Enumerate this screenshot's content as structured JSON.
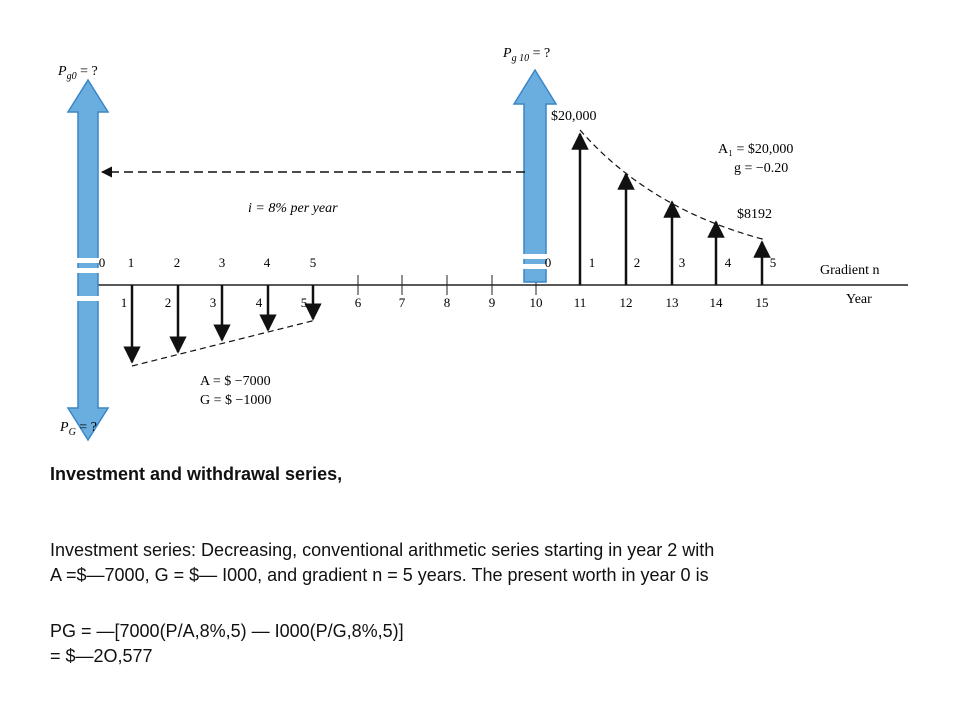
{
  "diagram": {
    "labels": {
      "pg0_label": "P",
      "pg0_sub": "g0",
      "pg0_tail": " = ?",
      "pg10_label": "P",
      "pg10_sub": "g 10",
      "pg10_tail": " = ?",
      "pg_label": "P",
      "pg_sub": "G",
      "pg_tail": " = ?",
      "interest": "i = 8% per year",
      "top_value": "$20,000",
      "a1": "A₁ = $20,000",
      "g": "g = −0.20",
      "end_value": "$8192",
      "a_withdrawal": "A = $ −7000",
      "g_withdrawal": "G = $ −1000",
      "gradient_n": "Gradient n",
      "year": "Year"
    },
    "gradient_left": [
      "0",
      "1",
      "2",
      "3",
      "4",
      "5"
    ],
    "gradient_right": [
      "0",
      "1",
      "2",
      "3",
      "4",
      "5"
    ],
    "below_left": [
      "1",
      "2",
      "3",
      "4",
      "5"
    ],
    "years": [
      "6",
      "7",
      "8",
      "9",
      "10",
      "11",
      "12",
      "13",
      "14",
      "15"
    ]
  },
  "text": {
    "heading": "Investment and withdrawal series,",
    "line1": "Investment series: Decreasing, conventional arithmetic series starting in year 2 with",
    "line2": "A =$—7000, G = $— I000, and gradient n = 5 years. The present worth in year 0 is",
    "line3": " PG = —[7000(P/A,8%,5) — I000(P/G,8%,5)]",
    "line4": "= $—2O,577"
  },
  "colors": {
    "arrow_fill": "#6aaee0",
    "arrow_stroke": "#3a86c6",
    "ink": "#111111"
  }
}
